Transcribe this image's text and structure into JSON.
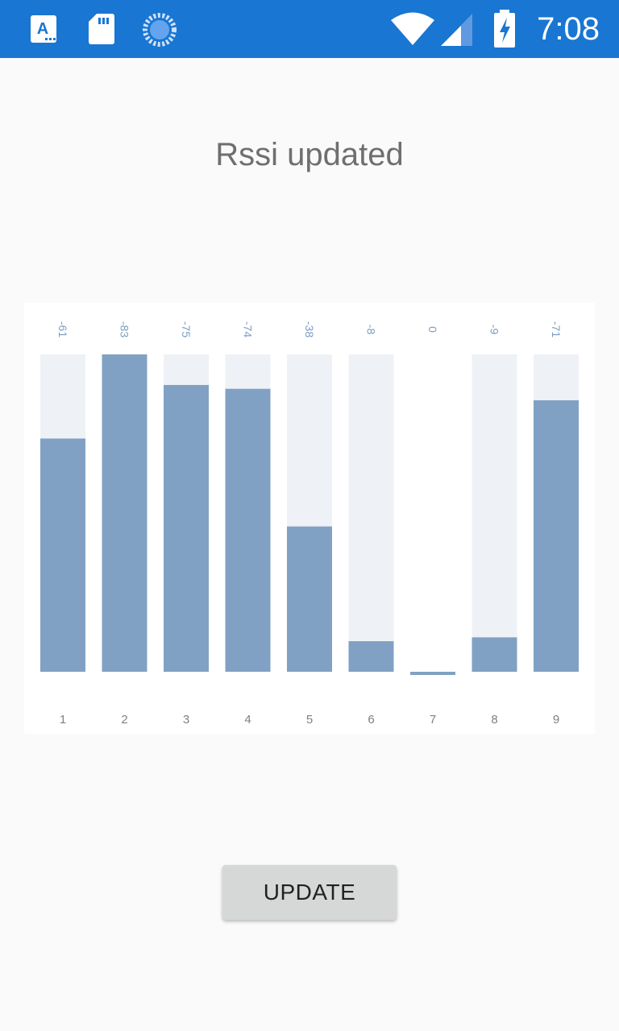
{
  "status_bar": {
    "time": "7:08",
    "icons": [
      "app-a-icon",
      "sd-card-icon",
      "sync-icon",
      "wifi-icon",
      "signal-icon",
      "battery-charging-icon"
    ],
    "color": "#1976d2"
  },
  "title": "Rssi updated",
  "chart_data": {
    "type": "bar",
    "categories": [
      "1",
      "2",
      "3",
      "4",
      "5",
      "6",
      "7",
      "8",
      "9"
    ],
    "values": [
      -61,
      -83,
      -75,
      -74,
      -38,
      -8,
      0,
      -9,
      -71
    ],
    "value_labels": [
      "-61",
      "-83",
      "-75",
      "-74",
      "-38",
      "-8",
      "0",
      "-9",
      "-71"
    ],
    "ylim": [
      0,
      83
    ],
    "bar_color": "#80a1c4",
    "track_color": "#eef1f6",
    "label_color": "#7b9cc3",
    "tick_color": "#808080"
  },
  "update_button": {
    "label": "UPDATE"
  }
}
